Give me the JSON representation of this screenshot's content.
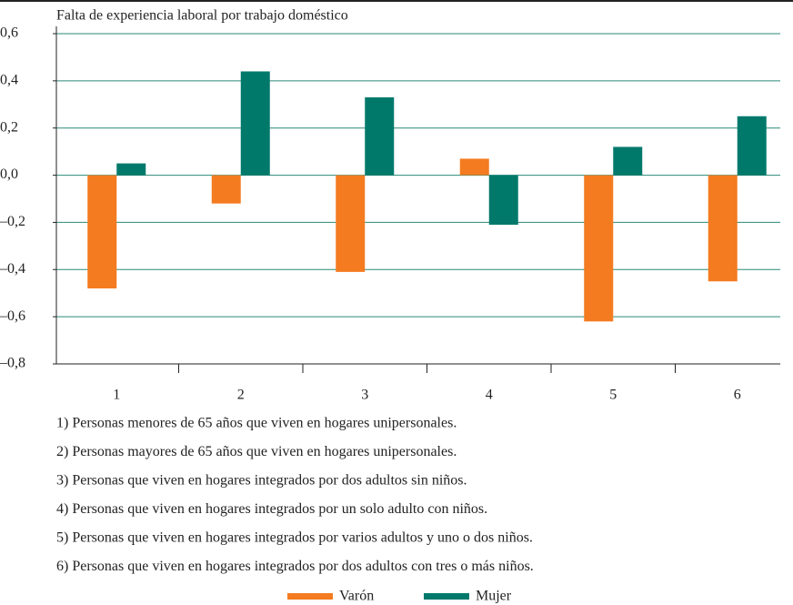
{
  "chart_data": {
    "type": "bar",
    "title": "Falta de experiencia laboral por trabajo doméstico",
    "categories": [
      "1",
      "2",
      "3",
      "4",
      "5",
      "6"
    ],
    "series": [
      {
        "name": "Varón",
        "color": "#f47b20",
        "values": [
          -0.48,
          -0.12,
          -0.41,
          0.07,
          -0.62,
          -0.45
        ]
      },
      {
        "name": "Mujer",
        "color": "#00796b",
        "values": [
          0.05,
          0.44,
          0.33,
          -0.21,
          0.12,
          0.25
        ]
      }
    ],
    "ylim": [
      -0.8,
      0.6
    ],
    "yticks": [
      {
        "value": -0.8,
        "label": "–0,8"
      },
      {
        "value": -0.6,
        "label": "–0,6"
      },
      {
        "value": -0.4,
        "label": "–0,4"
      },
      {
        "value": -0.2,
        "label": "–0,2"
      },
      {
        "value": 0,
        "label": "0,0"
      },
      {
        "value": 0.2,
        "label": "0,2"
      },
      {
        "value": 0.4,
        "label": "0,4"
      },
      {
        "value": 0.6,
        "label": "0,6"
      }
    ],
    "grid": true,
    "legend": "bottom",
    "notes": [
      "1) Personas menores de 65 años que viven en hogares unipersonales.",
      "2) Personas mayores de 65 años que viven en hogares unipersonales.",
      "3) Personas que viven en hogares integrados por dos adultos sin niños.",
      "4) Personas que viven en hogares integrados por un solo adulto con niños.",
      "5) Personas que viven en hogares integrados por varios adultos y uno o dos niños.",
      "6) Personas que viven en hogares integrados por dos adultos con tres o más niños."
    ]
  }
}
